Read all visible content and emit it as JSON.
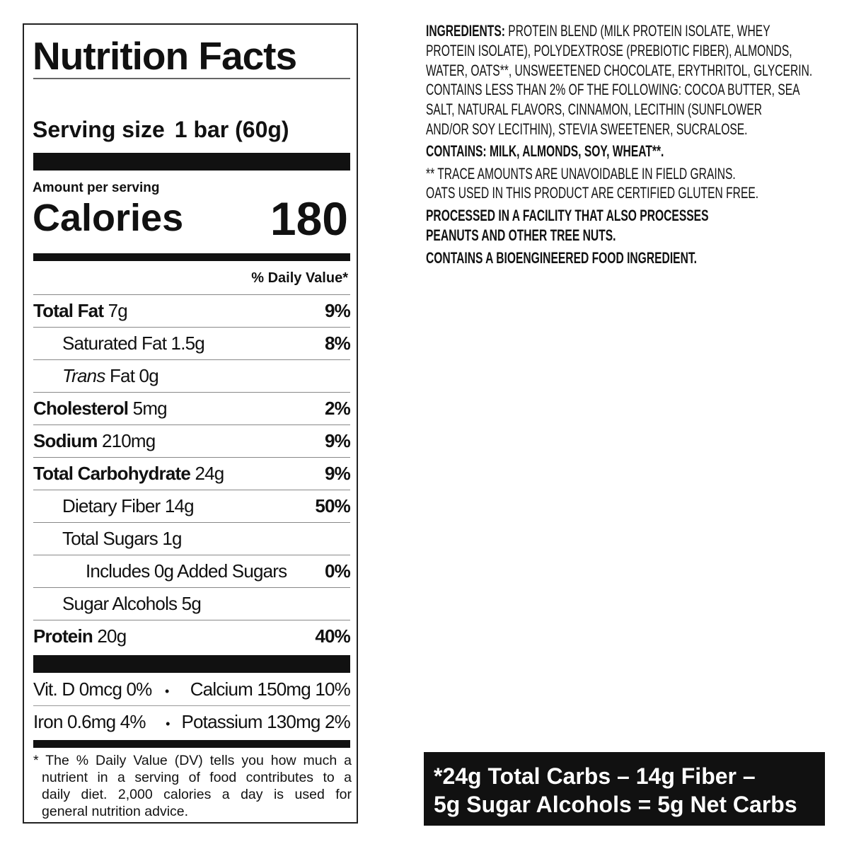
{
  "label": {
    "title": "Nutrition Facts",
    "serving_label": "Serving size",
    "serving_value": "1 bar (60g)",
    "amount_per_serving": "Amount per serving",
    "calories_label": "Calories",
    "calories_value": "180",
    "daily_value_header": "% Daily Value*",
    "rows": [
      {
        "name": "Total Fat",
        "amount": " 7g",
        "pct": "9%",
        "bold": true,
        "indent": 0
      },
      {
        "name": "Saturated Fat 1.5g",
        "amount": "",
        "pct": "8%",
        "bold": false,
        "indent": 1
      },
      {
        "name": "Trans",
        "amount": " Fat 0g",
        "pct": "",
        "bold": false,
        "indent": 1,
        "italic": true
      },
      {
        "name": "Cholesterol",
        "amount": " 5mg",
        "pct": "2%",
        "bold": true,
        "indent": 0
      },
      {
        "name": "Sodium",
        "amount": " 210mg",
        "pct": "9%",
        "bold": true,
        "indent": 0
      },
      {
        "name": "Total Carbohydrate",
        "amount": " 24g",
        "pct": "9%",
        "bold": true,
        "indent": 0
      },
      {
        "name": "Dietary Fiber 14g",
        "amount": "",
        "pct": "50%",
        "bold": false,
        "indent": 1
      },
      {
        "name": "Total Sugars 1g",
        "amount": "",
        "pct": "",
        "bold": false,
        "indent": 1
      },
      {
        "name": "Includes 0g Added Sugars",
        "amount": "",
        "pct": "0%",
        "bold": false,
        "indent": 2
      },
      {
        "name": "Sugar Alcohols 5g",
        "amount": "",
        "pct": "",
        "bold": false,
        "indent": 1
      },
      {
        "name": "Protein",
        "amount": " 20g",
        "pct": "40%",
        "bold": true,
        "indent": 0
      }
    ],
    "vitamins": [
      {
        "left": "Vit. D 0mcg 0%",
        "bullet": "•",
        "right": "Calcium 150mg 10%"
      },
      {
        "left": "Iron 0.6mg 4%",
        "bullet": "•",
        "right": "Potassium 130mg 2%"
      }
    ],
    "footnote_lines": [
      "* The % Daily Value (DV) tells you how much a",
      "nutrient in a serving of food contributes to a",
      "daily diet. 2,000 calories a day is used for",
      "general nutrition advice."
    ]
  },
  "ingredients": {
    "heading": "INGREDIENTS:",
    "lines": [
      " PROTEIN BLEND (MILK PROTEIN ISOLATE, WHEY",
      "PROTEIN ISOLATE), POLYDEXTROSE (PREBIOTIC FIBER), ALMONDS,",
      "WATER, OATS**, UNSWEETENED CHOCOLATE, ERYTHRITOL, GLYCERIN.",
      "CONTAINS LESS THAN 2% OF THE FOLLOWING: COCOA BUTTER, SEA",
      "SALT, NATURAL FLAVORS, CINNAMON, LECITHIN (SUNFLOWER",
      "AND/OR SOY LECITHIN), STEVIA SWEETENER, SUCRALOSE."
    ],
    "contains": "CONTAINS: MILK, ALMONDS, SOY, WHEAT**.",
    "trace_lines": [
      "** TRACE AMOUNTS ARE UNAVOIDABLE IN FIELD GRAINS.",
      "OATS USED IN THIS PRODUCT ARE CERTIFIED GLUTEN FREE."
    ],
    "facility_lines": [
      "PROCESSED IN A FACILITY THAT ALSO PROCESSES",
      "PEANUTS AND OTHER TREE NUTS."
    ],
    "bioengineered": "CONTAINS A BIOENGINEERED FOOD INGREDIENT."
  },
  "net_carbs": {
    "line1": "*24g Total Carbs – 14g Fiber –",
    "line2": "5g Sugar Alcohols = 5g Net Carbs",
    "background": "#111111",
    "text_color": "#ffffff"
  }
}
